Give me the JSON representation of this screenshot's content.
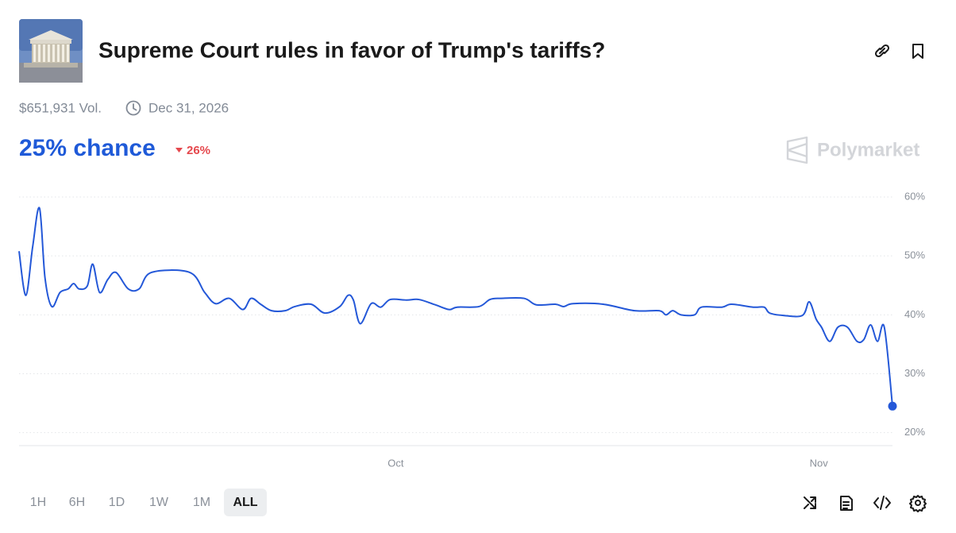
{
  "header": {
    "title": "Supreme Court rules in favor of Trump's tariffs?",
    "volume": "$651,931 Vol.",
    "end_date": "Dec 31, 2026"
  },
  "outcome": {
    "chance": "25% chance",
    "change": "26%"
  },
  "brand": "Polymarket",
  "chart_data": {
    "type": "line",
    "color": "#2458d8",
    "x": [
      246.4,
      246.9,
      247.4,
      247.9,
      248.3,
      248.8,
      249.4,
      250.0,
      250.4,
      250.8,
      251.4,
      251.8,
      252.3,
      252.9,
      253.5,
      254.4,
      255.2,
      256.1,
      258.9,
      260.0,
      260.8,
      261.8,
      262.8,
      263.4,
      264.1,
      264.9,
      265.9,
      266.6,
      267.8,
      268.8,
      269.9,
      270.5,
      270.9,
      271.4,
      272.2,
      272.9,
      273.6,
      274.8,
      275.7,
      276.9,
      277.9,
      278.5,
      280.1,
      280.9,
      281.7,
      283.4,
      284.3,
      285.7,
      286.3,
      287.0,
      289.2,
      291.5,
      293.3,
      293.8,
      294.3,
      294.9,
      295.9,
      296.4,
      297.9,
      298.6,
      300.2,
      301.0,
      301.4,
      302.4,
      303.8,
      304.3,
      304.8,
      305.2,
      305.8,
      306.4,
      307.1,
      307.8,
      308.3,
      308.8,
      309.3,
      309.8,
      310.4
    ],
    "values": [
      50.8,
      43.3,
      51.6,
      58.1,
      46.3,
      41.4,
      43.8,
      44.4,
      45.3,
      44.4,
      44.9,
      48.6,
      43.8,
      46.0,
      47.2,
      44.4,
      44.4,
      47.2,
      47.2,
      43.8,
      41.9,
      42.8,
      40.9,
      42.8,
      41.8,
      40.7,
      40.7,
      41.4,
      41.8,
      40.3,
      41.4,
      43.3,
      42.5,
      38.5,
      41.9,
      41.3,
      42.6,
      42.5,
      42.6,
      41.7,
      40.9,
      41.3,
      41.4,
      42.6,
      42.8,
      42.8,
      41.7,
      41.8,
      41.4,
      41.9,
      41.8,
      40.7,
      40.7,
      40.0,
      40.7,
      40.0,
      40.0,
      41.3,
      41.3,
      41.8,
      41.3,
      41.3,
      40.3,
      39.9,
      39.9,
      42.2,
      39.3,
      37.9,
      35.5,
      37.9,
      37.9,
      35.5,
      35.8,
      38.3,
      35.5,
      37.9,
      24.5
    ],
    "xlim": [
      246.4,
      310.4
    ],
    "xticks": [
      {
        "value": 274,
        "label": "Oct"
      },
      {
        "value": 305,
        "label": "Nov"
      }
    ],
    "ylim": [
      17.8,
      60
    ],
    "yticks": [
      {
        "value": 20,
        "label": "20%"
      },
      {
        "value": 30,
        "label": "30%"
      },
      {
        "value": 40,
        "label": "40%"
      },
      {
        "value": 50,
        "label": "50%"
      },
      {
        "value": 60,
        "label": "60%"
      }
    ],
    "grid": true
  },
  "time_ranges": {
    "options": [
      "1H",
      "6H",
      "1D",
      "1W",
      "1M",
      "ALL"
    ],
    "active": 5
  }
}
